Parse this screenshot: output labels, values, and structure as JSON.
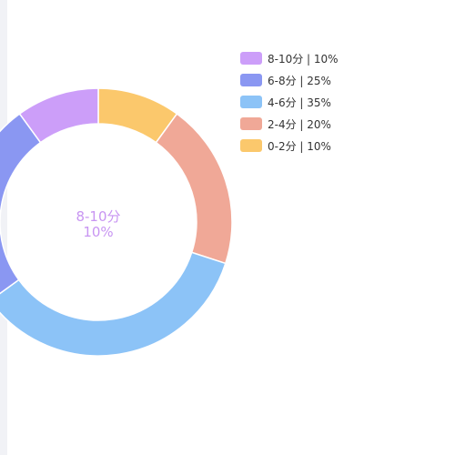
{
  "chart_data": {
    "type": "pie",
    "style": "donut",
    "categories": [
      "8-10分",
      "6-8分",
      "4-6分",
      "2-4分",
      "0-2分"
    ],
    "values": [
      10,
      25,
      35,
      20,
      10
    ],
    "unit": "%",
    "colors": [
      "#cc9ef9",
      "#8a97f2",
      "#8cc3f7",
      "#f0a897",
      "#fbc86c"
    ],
    "legend_labels": [
      "8-10分 | 10%",
      "6-8分 | 25%",
      "4-6分 | 35%",
      "2-4分 | 20%",
      "0-2分 | 10%"
    ],
    "legend_position": "top-right",
    "highlighted": {
      "name": "8-10分",
      "value_label": "10%",
      "color": "#c895f2"
    },
    "title": ""
  }
}
